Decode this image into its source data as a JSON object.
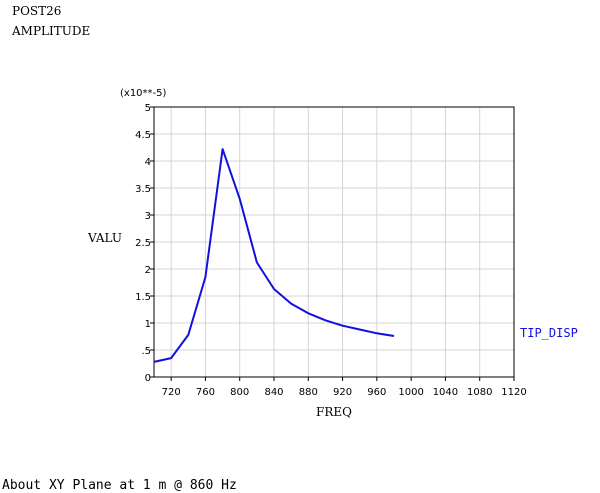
{
  "header": {
    "line1": "POST26",
    "line2": "AMPLITUDE"
  },
  "footer": "About XY Plane at 1 m @ 860 Hz",
  "chart_data": {
    "type": "line",
    "xlabel": "FREQ",
    "ylabel": "VALU",
    "y_multiplier_label": "(x10**-5)",
    "xlim": [
      700,
      1120
    ],
    "ylim": [
      0,
      5
    ],
    "x_ticks": [
      720,
      760,
      800,
      840,
      880,
      920,
      960,
      1000,
      1040,
      1080,
      1120
    ],
    "y_ticks": [
      0,
      0.5,
      1,
      1.5,
      2,
      2.5,
      3,
      3.5,
      4,
      4.5,
      5
    ],
    "x_tick_labels": [
      "720",
      "760",
      "800",
      "840",
      "880",
      "920",
      "960",
      "1000",
      "1040",
      "1080",
      "1120"
    ],
    "y_tick_labels": [
      "0",
      ".5",
      "1",
      "1.5",
      "2",
      "2.5",
      "3",
      "3.5",
      "4",
      "4.5",
      "5"
    ],
    "grid": true,
    "legend_position": "right",
    "series": [
      {
        "name": "TIP_DISP",
        "color": "#1010e0",
        "x": [
          700,
          720,
          740,
          760,
          780,
          800,
          820,
          840,
          860,
          880,
          900,
          920,
          940,
          960,
          980
        ],
        "y": [
          0.28,
          0.35,
          0.78,
          1.85,
          4.22,
          3.3,
          2.12,
          1.63,
          1.36,
          1.18,
          1.05,
          0.95,
          0.88,
          0.81,
          0.76
        ]
      }
    ]
  }
}
